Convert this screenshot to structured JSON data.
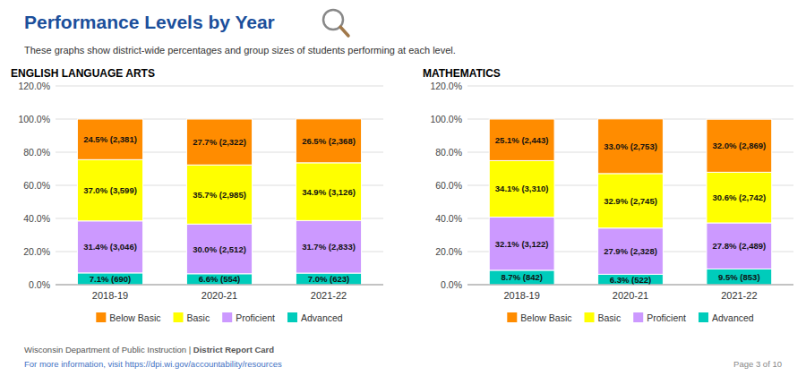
{
  "title": "Performance Levels by Year",
  "subtitle": "These graphs show district-wide percentages and group sizes of students performing at each level.",
  "annotations": [
    "Wisconsin Department of Public Instruction | ",
    "District Report Card",
    "For more information, visit https://dpi.wi.gov/accountability/resources",
    "Page 3 of 10"
  ],
  "chart_data": [
    {
      "type": "bar",
      "title": "ENGLISH LANGUAGE ARTS",
      "stacked": true,
      "data_labels": true,
      "grid": true,
      "legend": "bottom",
      "categories": [
        "2018-19",
        "2020-21",
        "2021-22"
      ],
      "series": [
        {
          "name": "Advanced",
          "color": "#00CCBB",
          "values": [
            7.1,
            6.6,
            7.0
          ],
          "value_labels": [
            "7.1% (690)",
            "6.6% (554)",
            "7.0% (623)"
          ]
        },
        {
          "name": "Proficient",
          "color": "#CC99FF",
          "values": [
            31.4,
            30.0,
            31.7
          ],
          "value_labels": [
            "31.4% (3,046)",
            "30.0% (2,512)",
            "31.7% (2,833)"
          ]
        },
        {
          "name": "Basic",
          "color": "#FFFF00",
          "values": [
            37.0,
            35.7,
            34.9
          ],
          "value_labels": [
            "37.0% (3,599)",
            "35.7% (2,985)",
            "34.9% (3,126)"
          ]
        },
        {
          "name": "Below Basic",
          "color": "#FF8C00",
          "values": [
            24.5,
            27.7,
            26.5
          ],
          "value_labels": [
            "24.5% (2,381)",
            "27.7% (2,322)",
            "26.5% (2,368)"
          ]
        }
      ],
      "ylim": [
        0,
        120
      ],
      "yticks": [
        {
          "value": 0,
          "label": "0.0%"
        },
        {
          "value": 20,
          "label": "20.0%"
        },
        {
          "value": 40,
          "label": "40.0%"
        },
        {
          "value": 60,
          "label": "60.0%"
        },
        {
          "value": 80,
          "label": "80.0%"
        },
        {
          "value": 100,
          "label": "100.0%"
        },
        {
          "value": 120,
          "label": "120.0%"
        }
      ]
    },
    {
      "type": "bar",
      "title": "MATHEMATICS",
      "stacked": true,
      "data_labels": true,
      "grid": true,
      "legend": "bottom",
      "categories": [
        "2018-19",
        "2020-21",
        "2021-22"
      ],
      "series": [
        {
          "name": "Advanced",
          "color": "#00CCBB",
          "values": [
            8.7,
            6.3,
            9.5
          ],
          "value_labels": [
            "8.7% (842)",
            "6.3% (522)",
            "9.5% (853)"
          ]
        },
        {
          "name": "Proficient",
          "color": "#CC99FF",
          "values": [
            32.1,
            27.9,
            27.8
          ],
          "value_labels": [
            "32.1% (3,122)",
            "27.9% (2,328)",
            "27.8% (2,489)"
          ]
        },
        {
          "name": "Basic",
          "color": "#FFFF00",
          "values": [
            34.1,
            32.9,
            30.6
          ],
          "value_labels": [
            "34.1% (3,310)",
            "32.9% (2,745)",
            "30.6% (2,742)"
          ]
        },
        {
          "name": "Below Basic",
          "color": "#FF8C00",
          "values": [
            25.1,
            33.0,
            32.0
          ],
          "value_labels": [
            "25.1% (2,443)",
            "33.0% (2,753)",
            "32.0% (2,869)"
          ]
        }
      ],
      "ylim": [
        0,
        120
      ],
      "yticks": [
        {
          "value": 0,
          "label": "0.0%"
        },
        {
          "value": 20,
          "label": "20.0%"
        },
        {
          "value": 40,
          "label": "40.0%"
        },
        {
          "value": 60,
          "label": "60.0%"
        },
        {
          "value": 80,
          "label": "80.0%"
        },
        {
          "value": 100,
          "label": "100.0%"
        },
        {
          "value": 120,
          "label": "120.0%"
        }
      ]
    }
  ]
}
